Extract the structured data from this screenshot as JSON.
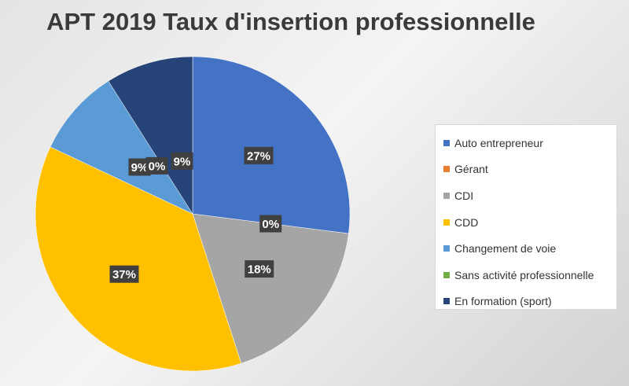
{
  "chart_data": {
    "type": "pie",
    "title": "APT 2019 Taux d'insertion professionnelle",
    "legend_position": "right",
    "slices": [
      {
        "label": "Auto entrepreneur",
        "value": 27,
        "display": "27%",
        "color": "#4472C4"
      },
      {
        "label": "Gérant",
        "value": 0,
        "display": "0%",
        "color": "#ED7D31"
      },
      {
        "label": "CDI",
        "value": 18,
        "display": "18%",
        "color": "#A5A5A5"
      },
      {
        "label": "CDD",
        "value": 37,
        "display": "37%",
        "color": "#FFC000"
      },
      {
        "label": "Changement de voie",
        "value": 9,
        "display": "9%",
        "color": "#5B9BD5"
      },
      {
        "label": "Sans activité professionnelle",
        "value": 0,
        "display": "0%",
        "color": "#70AD47"
      },
      {
        "label": "En formation (sport)",
        "value": 9,
        "display": "9%",
        "color": "#264478"
      }
    ]
  }
}
